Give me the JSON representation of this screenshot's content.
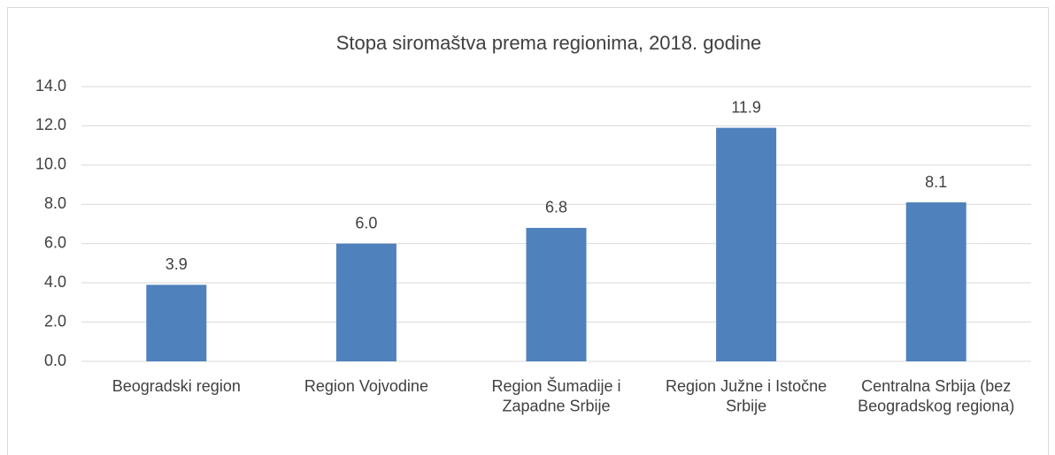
{
  "chart_data": {
    "type": "bar",
    "title": "Stopa siromaštva prema regionima, 2018. godine",
    "categories": [
      "Beogradski region",
      "Region Vojvodine",
      "Region Šumadije i Zapadne Srbije",
      "Region Južne i Istočne Srbije",
      "Centralna Srbija (bez Beogradskog regiona)"
    ],
    "values": [
      3.9,
      6.0,
      6.8,
      11.9,
      8.1
    ],
    "value_labels": [
      "3.9",
      "6.0",
      "6.8",
      "11.9",
      "8.1"
    ],
    "color": "#4f81bd",
    "ylim": [
      0,
      14
    ],
    "yticks": [
      {
        "value": 0,
        "label": "0.0"
      },
      {
        "value": 2,
        "label": "2.0"
      },
      {
        "value": 4,
        "label": "4.0"
      },
      {
        "value": 6,
        "label": "6.0"
      },
      {
        "value": 8,
        "label": "8.0"
      },
      {
        "value": 10,
        "label": "10.0"
      },
      {
        "value": 12,
        "label": "12.0"
      },
      {
        "value": 14,
        "label": "14.0"
      }
    ],
    "grid": true
  }
}
